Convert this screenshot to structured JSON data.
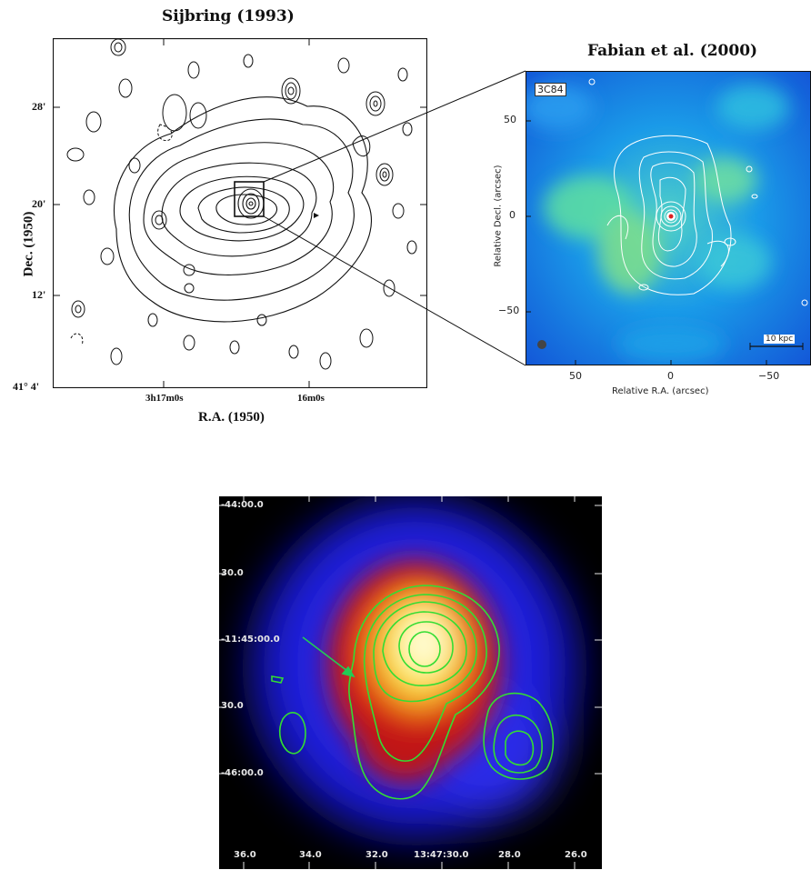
{
  "panel_a": {
    "title": "Sijbring (1993)",
    "y_axis_label": "Dec. (1950)",
    "x_axis_label": "R.A. (1950)",
    "y_ticks": [
      "28'",
      "20'",
      "12'",
      "41° 4'"
    ],
    "x_ticks": [
      "3h17m0s",
      "16m0s"
    ]
  },
  "panel_b": {
    "title": "Fabian et al. (2000)",
    "source_label": "3C84",
    "y_axis_label": "Relative Decl. (arcsec)",
    "x_axis_label": "Relative R.A. (arcsec)",
    "y_ticks": [
      "50",
      "0",
      "−50"
    ],
    "x_ticks": [
      "50",
      "0",
      "−50"
    ],
    "scale_bar": "10 kpc"
  },
  "panel_c": {
    "y_ticks": [
      "-44:00.0",
      "30.0",
      "-11:45:00.0",
      "30.0",
      "-46:00.0"
    ],
    "x_ticks": [
      "36.0",
      "34.0",
      "32.0",
      "13:47:30.0",
      "28.0",
      "26.0"
    ],
    "colors": {
      "contour": "#33dd33",
      "arrow": "#22cc55",
      "tick_label": "#e8e8e8"
    }
  }
}
